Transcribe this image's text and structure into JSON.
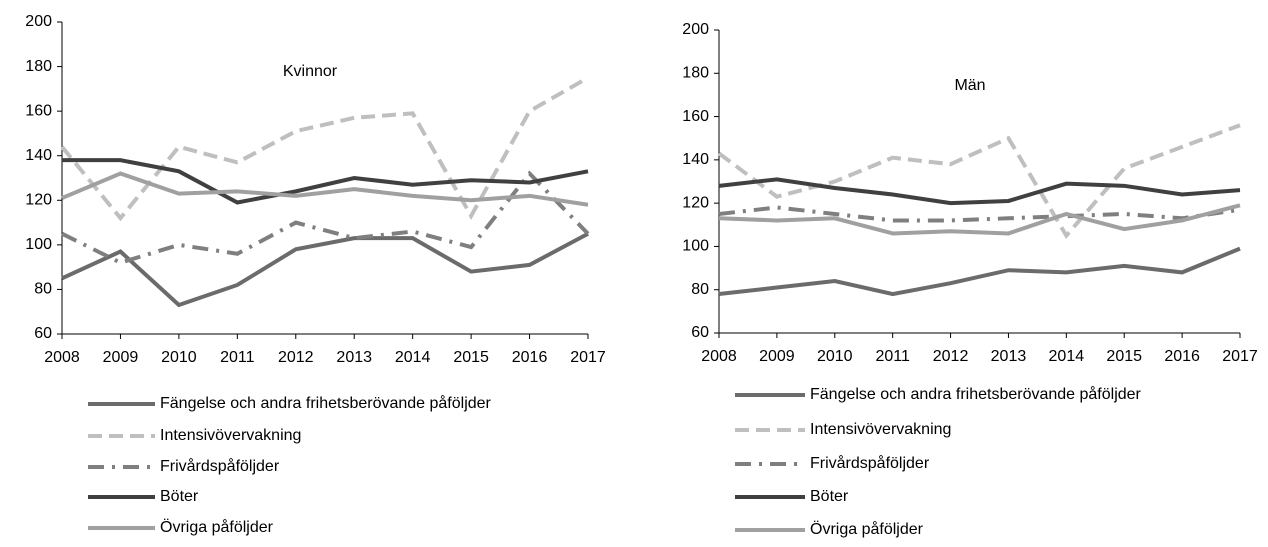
{
  "chart_data": [
    {
      "type": "line",
      "title": "Kvinnor",
      "categories": [
        "2008",
        "2009",
        "2010",
        "2011",
        "2012",
        "2013",
        "2014",
        "2015",
        "2016",
        "2017"
      ],
      "ylim": [
        60,
        200
      ],
      "yticks": [
        60,
        80,
        100,
        120,
        140,
        160,
        180,
        200
      ],
      "series": [
        {
          "name": "Fängelse och andra frihetsberövande påföljder",
          "color": "#6b6b6b",
          "linestyle": "solid",
          "values": [
            85,
            97,
            73,
            82,
            98,
            103,
            103,
            88,
            91,
            105
          ]
        },
        {
          "name": "Intensivövervakning",
          "color": "#bfbfbf",
          "linestyle": "dashed",
          "values": [
            144,
            112,
            144,
            137,
            151,
            157,
            159,
            113,
            160,
            175
          ]
        },
        {
          "name": "Frivårdspåföljder",
          "color": "#7f7f7f",
          "linestyle": "dashdot",
          "values": [
            105,
            92,
            100,
            96,
            110,
            103,
            106,
            99,
            132,
            105
          ]
        },
        {
          "name": "Böter",
          "color": "#404040",
          "linestyle": "solid",
          "values": [
            138,
            138,
            133,
            119,
            124,
            130,
            127,
            129,
            128,
            133
          ]
        },
        {
          "name": "Övriga påföljder",
          "color": "#a0a0a0",
          "linestyle": "solid",
          "values": [
            121,
            132,
            123,
            124,
            122,
            125,
            122,
            120,
            122,
            118
          ]
        }
      ]
    },
    {
      "type": "line",
      "title": "Män",
      "categories": [
        "2008",
        "2009",
        "2010",
        "2011",
        "2012",
        "2013",
        "2014",
        "2015",
        "2016",
        "2017"
      ],
      "ylim": [
        60,
        200
      ],
      "yticks": [
        60,
        80,
        100,
        120,
        140,
        160,
        180,
        200
      ],
      "series": [
        {
          "name": "Fängelse och andra frihetsberövande påföljder",
          "color": "#6b6b6b",
          "linestyle": "solid",
          "values": [
            78,
            81,
            84,
            78,
            83,
            89,
            88,
            91,
            88,
            99
          ]
        },
        {
          "name": "Intensivövervakning",
          "color": "#bfbfbf",
          "linestyle": "dashed",
          "values": [
            143,
            123,
            130,
            141,
            138,
            150,
            105,
            136,
            146,
            156
          ]
        },
        {
          "name": "Frivårdspåföljder",
          "color": "#7f7f7f",
          "linestyle": "dashdot",
          "values": [
            115,
            118,
            115,
            112,
            112,
            113,
            114,
            115,
            113,
            117
          ]
        },
        {
          "name": "Böter",
          "color": "#404040",
          "linestyle": "solid",
          "values": [
            128,
            131,
            127,
            124,
            120,
            121,
            129,
            128,
            124,
            126
          ]
        },
        {
          "name": "Övriga påföljder",
          "color": "#a0a0a0",
          "linestyle": "solid",
          "values": [
            113,
            112,
            113,
            106,
            107,
            106,
            115,
            108,
            112,
            119
          ]
        }
      ]
    }
  ]
}
